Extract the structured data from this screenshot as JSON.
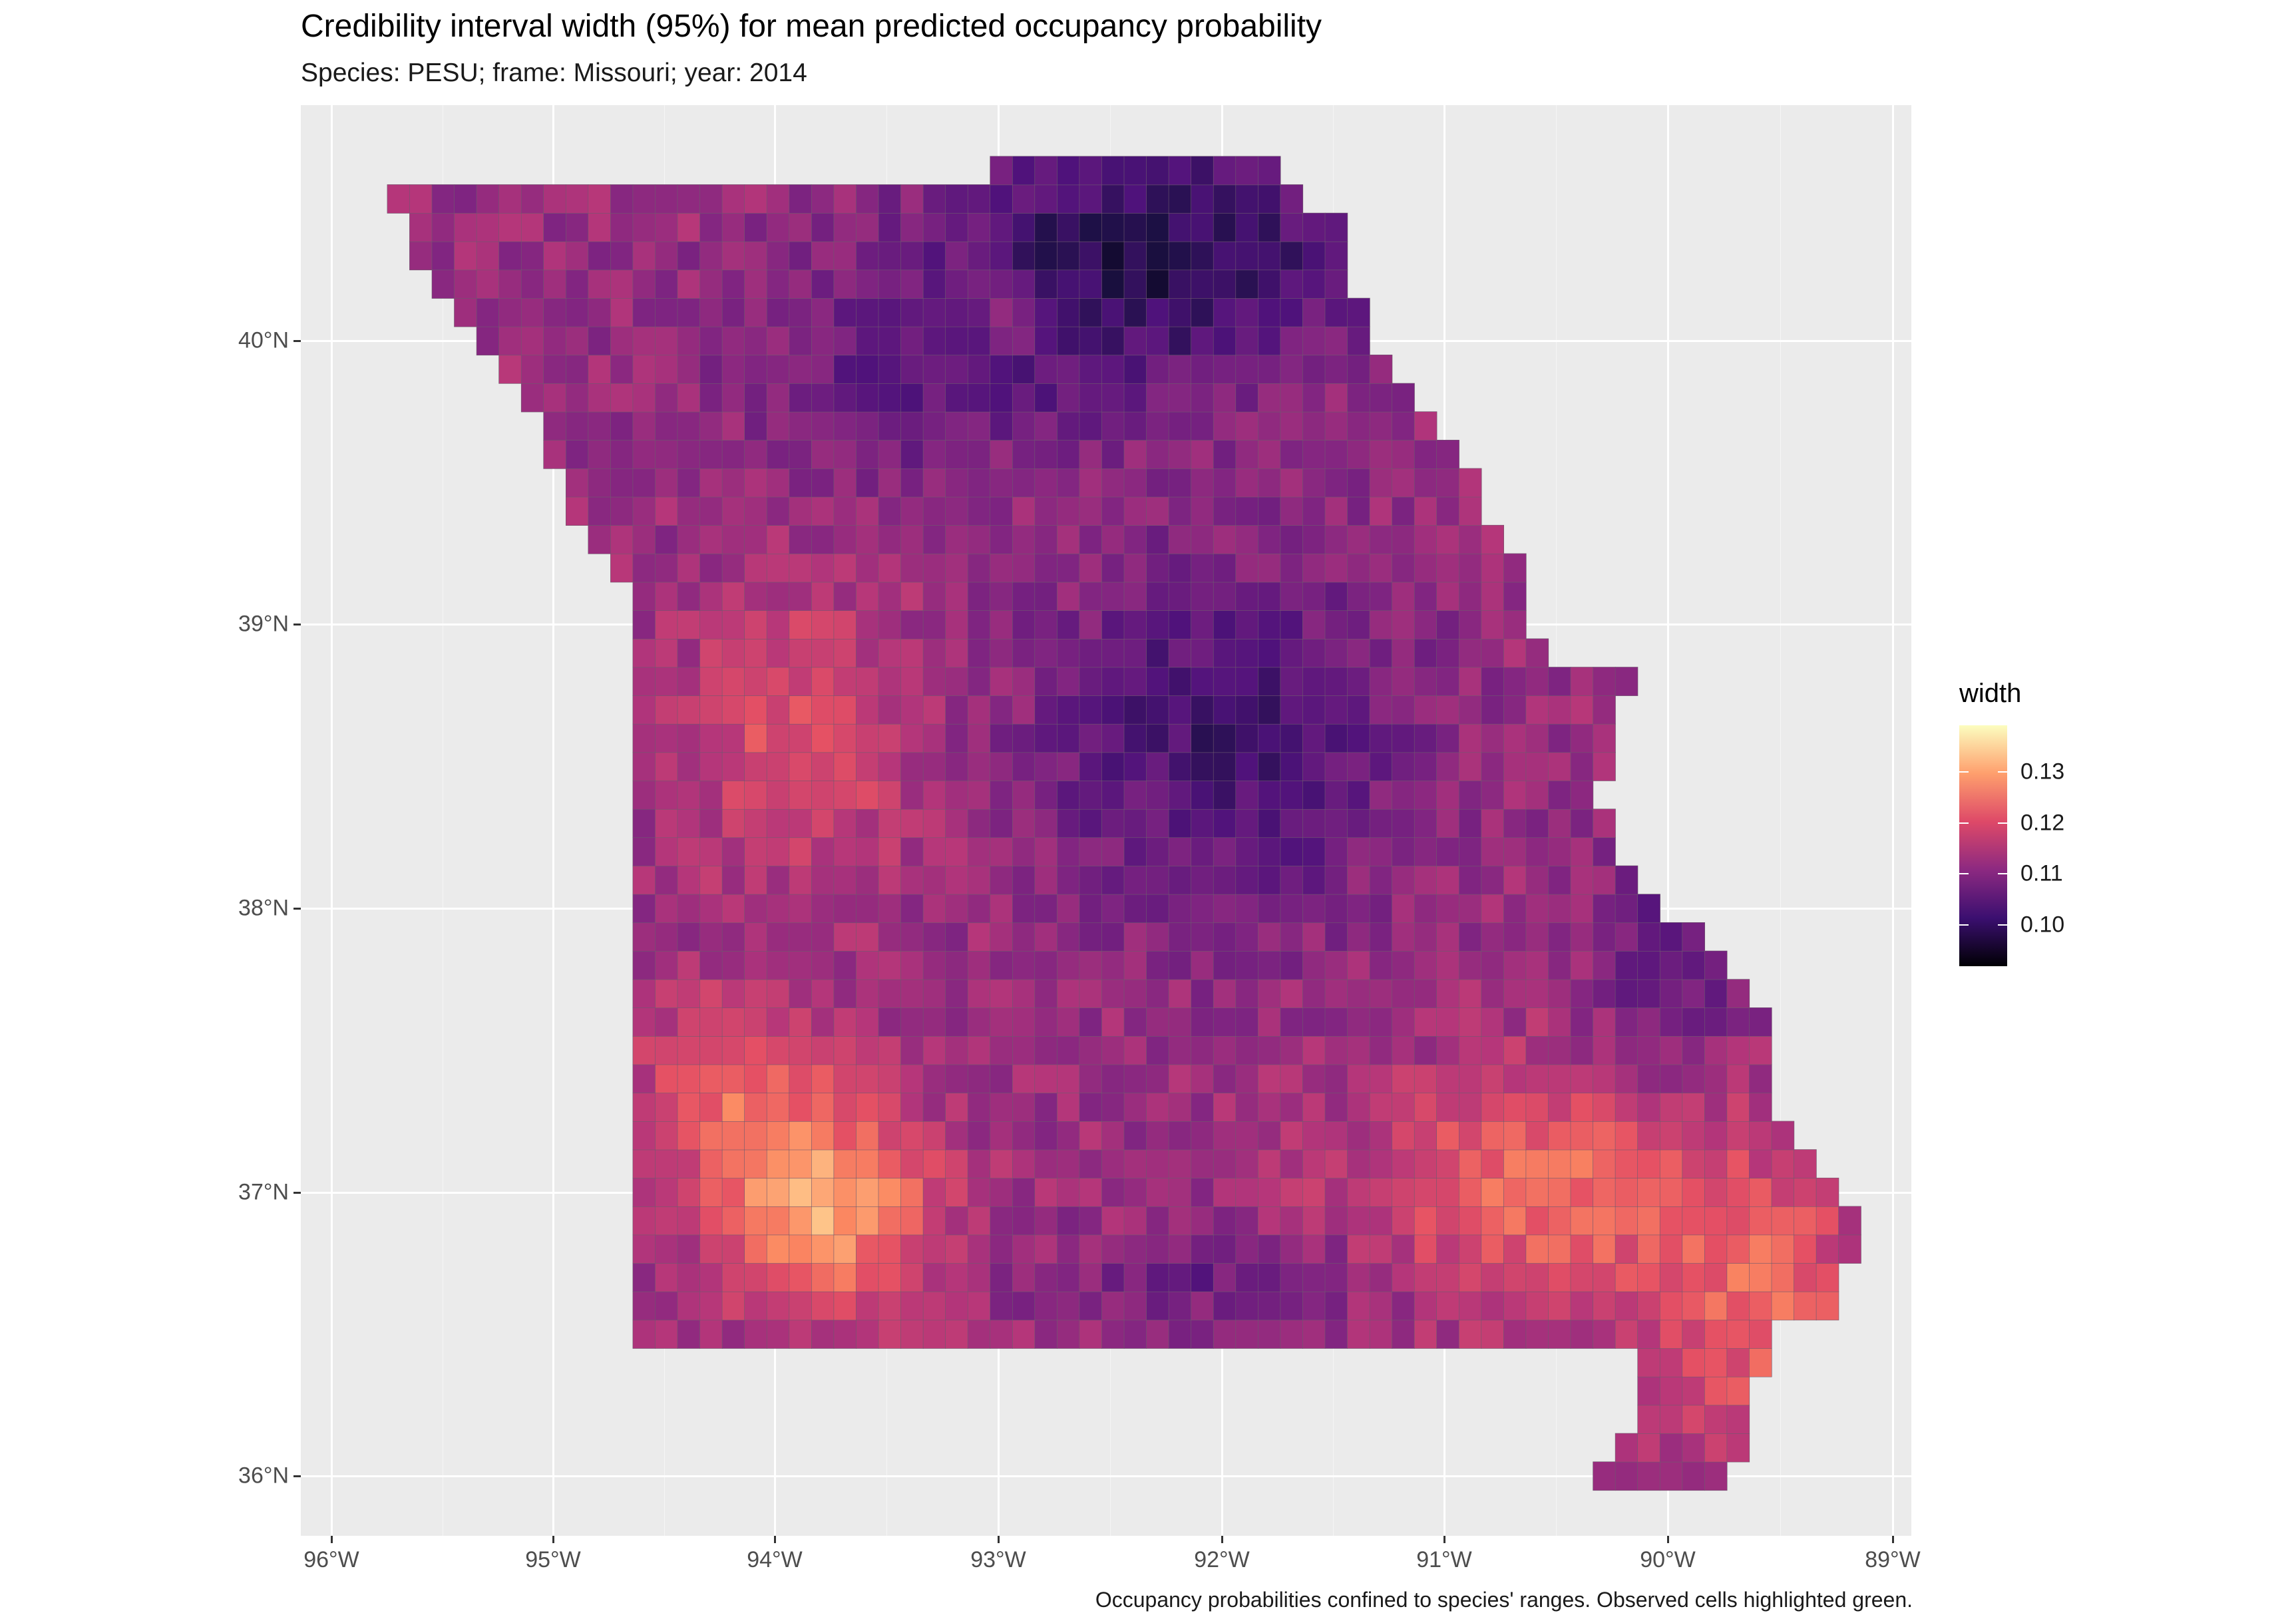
{
  "title": "Credibility interval width (95%) for mean predicted occupancy probability",
  "subtitle": "Species: PESU; frame: Missouri; year: 2014",
  "caption": "Occupancy probabilities confined to species' ranges. Observed cells highlighted green.",
  "x_axis": {
    "ticks": [
      "96°W",
      "95°W",
      "94°W",
      "93°W",
      "92°W",
      "91°W",
      "90°W",
      "89°W"
    ]
  },
  "y_axis": {
    "ticks": [
      "40°N",
      "39°N",
      "38°N",
      "37°N",
      "36°N"
    ]
  },
  "legend": {
    "title": "width",
    "labels": [
      "0.13",
      "0.12",
      "0.11",
      "0.10"
    ],
    "colormap": "magma",
    "range": [
      0.094,
      0.139
    ],
    "colors": [
      "#000004",
      "#3b0f70",
      "#8c2981",
      "#de4968",
      "#fe9f6d",
      "#fcfdbf"
    ]
  },
  "map": {
    "region": "Missouri",
    "lon_range": [
      -96.05,
      -88.9
    ],
    "lat_range": [
      35.8,
      40.8
    ],
    "fill_description": "Grid of cells colored by credibility interval width; lowest widths (dark) in northeast, highest (light yellow/orange) in southwest and southeast"
  }
}
